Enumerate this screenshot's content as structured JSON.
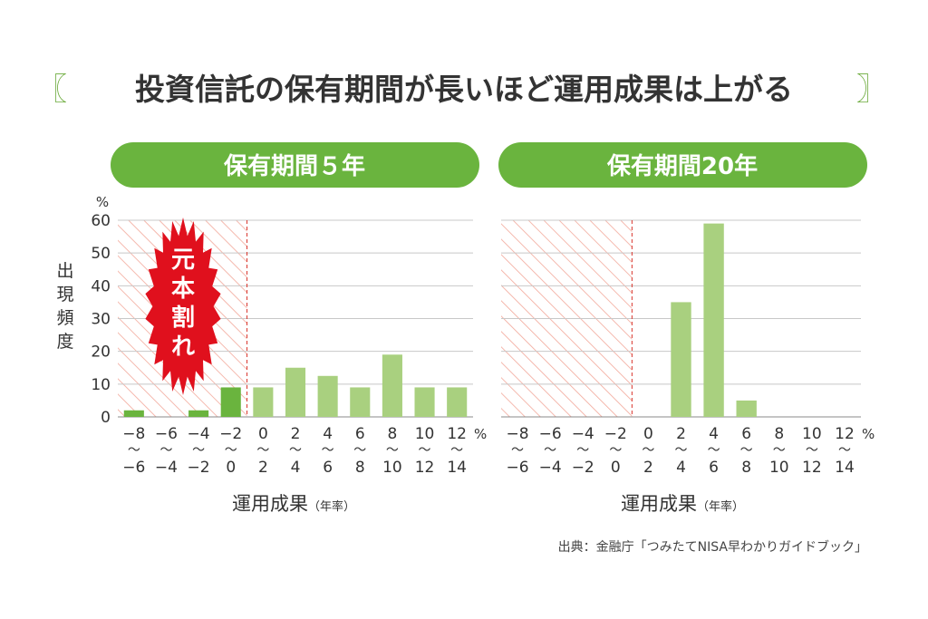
{
  "title": "投資信託の保有期間が長いほど運用成果は上がる",
  "bracket_left": "〖",
  "bracket_right": "〗",
  "source": "出典：金融庁「つみたてNISA早わかりガイドブック」",
  "y_axis_label": "出現頻度",
  "y_unit": "%",
  "x_unit": "%",
  "x_axis_label": "運用成果",
  "x_axis_label_small": "（年率）",
  "loss_badge": "元本割れ",
  "colors": {
    "loss_bar": "#6ab43e",
    "gain_bar": "#a9d07f",
    "pill": "#6ab43e",
    "hatch": "#f2a89a",
    "divider": "#d9342b",
    "burst": "#e0101d",
    "grid": "#c8c8c8"
  },
  "chart_data": [
    {
      "type": "bar",
      "title": "保有期間５年",
      "categories": [
        "−8〜−6",
        "−6〜−4",
        "−4〜−2",
        "−2〜0",
        "0〜2",
        "2〜4",
        "4〜6",
        "6〜8",
        "8〜10",
        "10〜12",
        "12〜14"
      ],
      "tick_top": [
        "−8",
        "−6",
        "−4",
        "−2",
        "0",
        "2",
        "4",
        "6",
        "8",
        "10",
        "12"
      ],
      "tick_bottom": [
        "−6",
        "−4",
        "−2",
        "0",
        "2",
        "4",
        "6",
        "8",
        "10",
        "12",
        "14"
      ],
      "values": [
        2,
        0,
        2,
        9,
        9,
        15,
        12.5,
        9,
        19,
        9,
        9
      ],
      "ylabel": "出現頻度",
      "xlabel": "運用成果（年率）",
      "ylim": [
        0,
        60
      ],
      "yticks": [
        0,
        10,
        20,
        30,
        40,
        50,
        60
      ],
      "loss_region_categories": 4,
      "grid": true
    },
    {
      "type": "bar",
      "title": "保有期間20年",
      "categories": [
        "−8〜−6",
        "−6〜−4",
        "−4〜−2",
        "−2〜0",
        "0〜2",
        "2〜4",
        "4〜6",
        "6〜8",
        "8〜10",
        "10〜12",
        "12〜14"
      ],
      "tick_top": [
        "−8",
        "−6",
        "−4",
        "−2",
        "0",
        "2",
        "4",
        "6",
        "8",
        "10",
        "12"
      ],
      "tick_bottom": [
        "−6",
        "−4",
        "−2",
        "0",
        "2",
        "4",
        "6",
        "8",
        "10",
        "12",
        "14"
      ],
      "values": [
        0,
        0,
        0,
        0,
        0,
        35,
        59,
        5,
        0,
        0,
        0
      ],
      "ylabel": "",
      "xlabel": "運用成果（年率）",
      "ylim": [
        0,
        60
      ],
      "yticks": [
        0,
        10,
        20,
        30,
        40,
        50,
        60
      ],
      "loss_region_categories": 4,
      "grid": true
    }
  ]
}
